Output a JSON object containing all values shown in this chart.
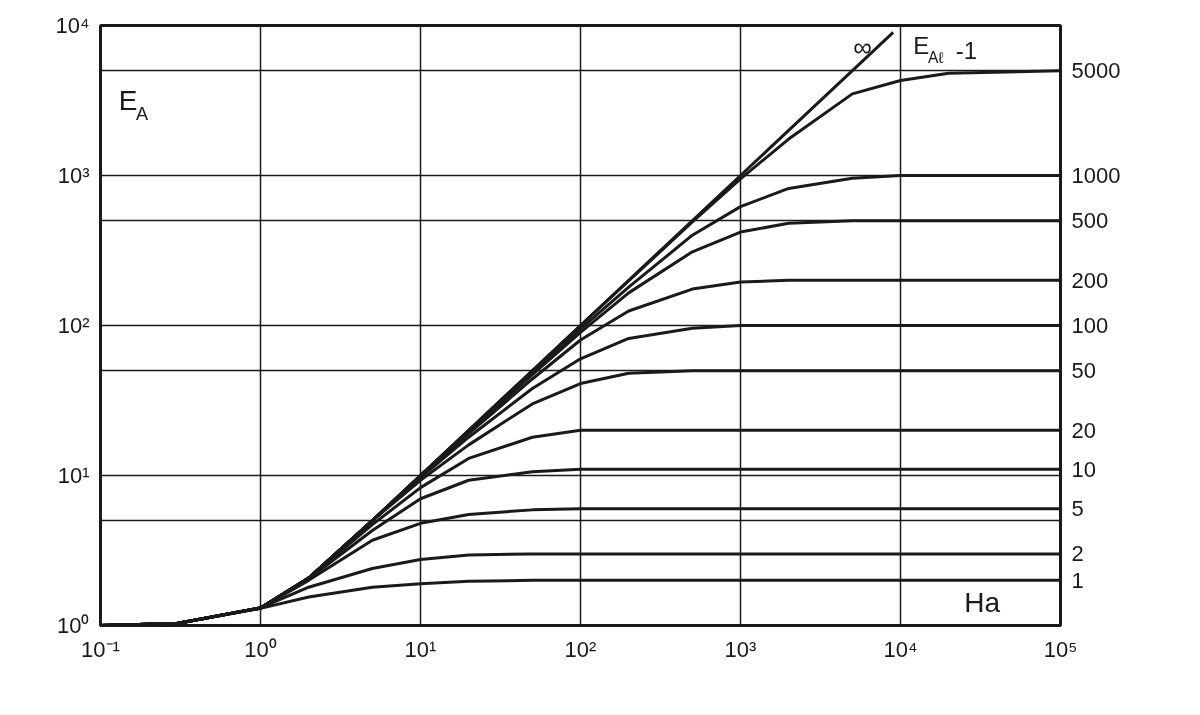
{
  "chart_data": {
    "type": "line",
    "log": "xy",
    "xlabel": "Ha",
    "ylabel": "E$_{A}$",
    "legend_title": "E$_{Aℓ}$ -1",
    "grid": true,
    "line_style": "solid",
    "marker": "none",
    "xlim": [
      0.1,
      100000
    ],
    "ylim": [
      1,
      10000
    ],
    "xticks": [
      {
        "value": 0.1,
        "label": "10⁻¹"
      },
      {
        "value": 1,
        "label": "10⁰"
      },
      {
        "value": 10,
        "label": "10¹"
      },
      {
        "value": 100,
        "label": "10²"
      },
      {
        "value": 1000,
        "label": "10³"
      },
      {
        "value": 10000,
        "label": "10⁴"
      },
      {
        "value": 100000,
        "label": "10⁵"
      }
    ],
    "yticks": [
      {
        "value": 1,
        "label": "10⁰"
      },
      {
        "value": 5,
        "label": null
      },
      {
        "value": 10,
        "label": "10¹"
      },
      {
        "value": 50,
        "label": null
      },
      {
        "value": 100,
        "label": "10²"
      },
      {
        "value": 500,
        "label": null
      },
      {
        "value": 1000,
        "label": "10³"
      },
      {
        "value": 5000,
        "label": null
      },
      {
        "value": 10000,
        "label": "10⁴"
      }
    ],
    "series": [
      {
        "name": "∞",
        "color": "#1a1a1a",
        "x": [
          0.1,
          0.3,
          1,
          2,
          5,
          10,
          100,
          1000,
          9000
        ],
        "values": [
          1.0,
          1.03,
          1.31,
          2.07,
          5,
          10,
          100,
          1000,
          9000
        ]
      },
      {
        "name": "5000",
        "color": "#1a1a1a",
        "x": [
          0.1,
          0.3,
          1,
          2,
          5,
          10,
          100,
          500,
          1000,
          2000,
          5000,
          10000,
          20000,
          100000
        ],
        "values": [
          1.0,
          1.03,
          1.31,
          2.07,
          5,
          10,
          100,
          490,
          950,
          1750,
          3500,
          4300,
          4800,
          5000
        ]
      },
      {
        "name": "1000",
        "color": "#1a1a1a",
        "x": [
          0.1,
          0.3,
          1,
          2,
          5,
          10,
          100,
          200,
          500,
          1000,
          2000,
          5000,
          10000,
          100000
        ],
        "values": [
          1.0,
          1.03,
          1.31,
          2.07,
          5,
          10,
          95,
          180,
          400,
          620,
          820,
          960,
          1000,
          1000
        ]
      },
      {
        "name": "500",
        "color": "#1a1a1a",
        "x": [
          0.1,
          0.3,
          1,
          2,
          5,
          10,
          50,
          100,
          200,
          500,
          1000,
          2000,
          5000,
          100000
        ],
        "values": [
          1.0,
          1.03,
          1.31,
          2.07,
          5,
          10,
          47,
          90,
          165,
          310,
          420,
          480,
          500,
          500
        ]
      },
      {
        "name": "200",
        "color": "#1a1a1a",
        "x": [
          0.1,
          0.3,
          1,
          2,
          5,
          10,
          20,
          50,
          100,
          200,
          500,
          1000,
          2000,
          100000
        ],
        "values": [
          1.0,
          1.03,
          1.31,
          2.07,
          5,
          10,
          19,
          44,
          80,
          125,
          175,
          195,
          200,
          200
        ]
      },
      {
        "name": "100",
        "color": "#1a1a1a",
        "x": [
          0.1,
          0.3,
          1,
          2,
          5,
          10,
          20,
          50,
          100,
          200,
          500,
          1000,
          100000
        ],
        "values": [
          1.0,
          1.03,
          1.31,
          2.07,
          5,
          9.7,
          18,
          38,
          60,
          82,
          96,
          100,
          100
        ]
      },
      {
        "name": "50",
        "color": "#1a1a1a",
        "x": [
          0.1,
          0.3,
          1,
          2,
          5,
          10,
          20,
          50,
          100,
          200,
          500,
          100000
        ],
        "values": [
          1.0,
          1.03,
          1.31,
          2.07,
          5,
          9.3,
          16,
          30,
          41,
          48,
          50,
          50
        ]
      },
      {
        "name": "20",
        "color": "#1a1a1a",
        "x": [
          0.1,
          0.3,
          1,
          2,
          5,
          10,
          20,
          50,
          100,
          200,
          100000
        ],
        "values": [
          1.0,
          1.03,
          1.31,
          2.07,
          4.7,
          8.3,
          13,
          18,
          20,
          20,
          20
        ]
      },
      {
        "name": "10",
        "color": "#1a1a1a",
        "x": [
          0.1,
          0.3,
          1,
          2,
          5,
          10,
          20,
          50,
          100,
          100000
        ],
        "values": [
          1.0,
          1.03,
          1.31,
          2.05,
          4.3,
          7,
          9.3,
          10.6,
          11,
          11
        ]
      },
      {
        "name": "5",
        "color": "#1a1a1a",
        "x": [
          0.1,
          0.3,
          1,
          2,
          5,
          10,
          20,
          50,
          100,
          100000
        ],
        "values": [
          1.0,
          1.03,
          1.31,
          2.0,
          3.7,
          4.8,
          5.5,
          5.9,
          6,
          6
        ]
      },
      {
        "name": "2",
        "color": "#1a1a1a",
        "x": [
          0.1,
          0.3,
          1,
          2,
          5,
          10,
          20,
          50,
          100000
        ],
        "values": [
          1.0,
          1.03,
          1.31,
          1.8,
          2.4,
          2.75,
          2.95,
          3,
          3
        ]
      },
      {
        "name": "1",
        "color": "#1a1a1a",
        "x": [
          0.1,
          0.3,
          1,
          2,
          5,
          10,
          20,
          50,
          100000
        ],
        "values": [
          1.0,
          1.03,
          1.3,
          1.55,
          1.8,
          1.9,
          1.97,
          2,
          2
        ]
      }
    ]
  }
}
